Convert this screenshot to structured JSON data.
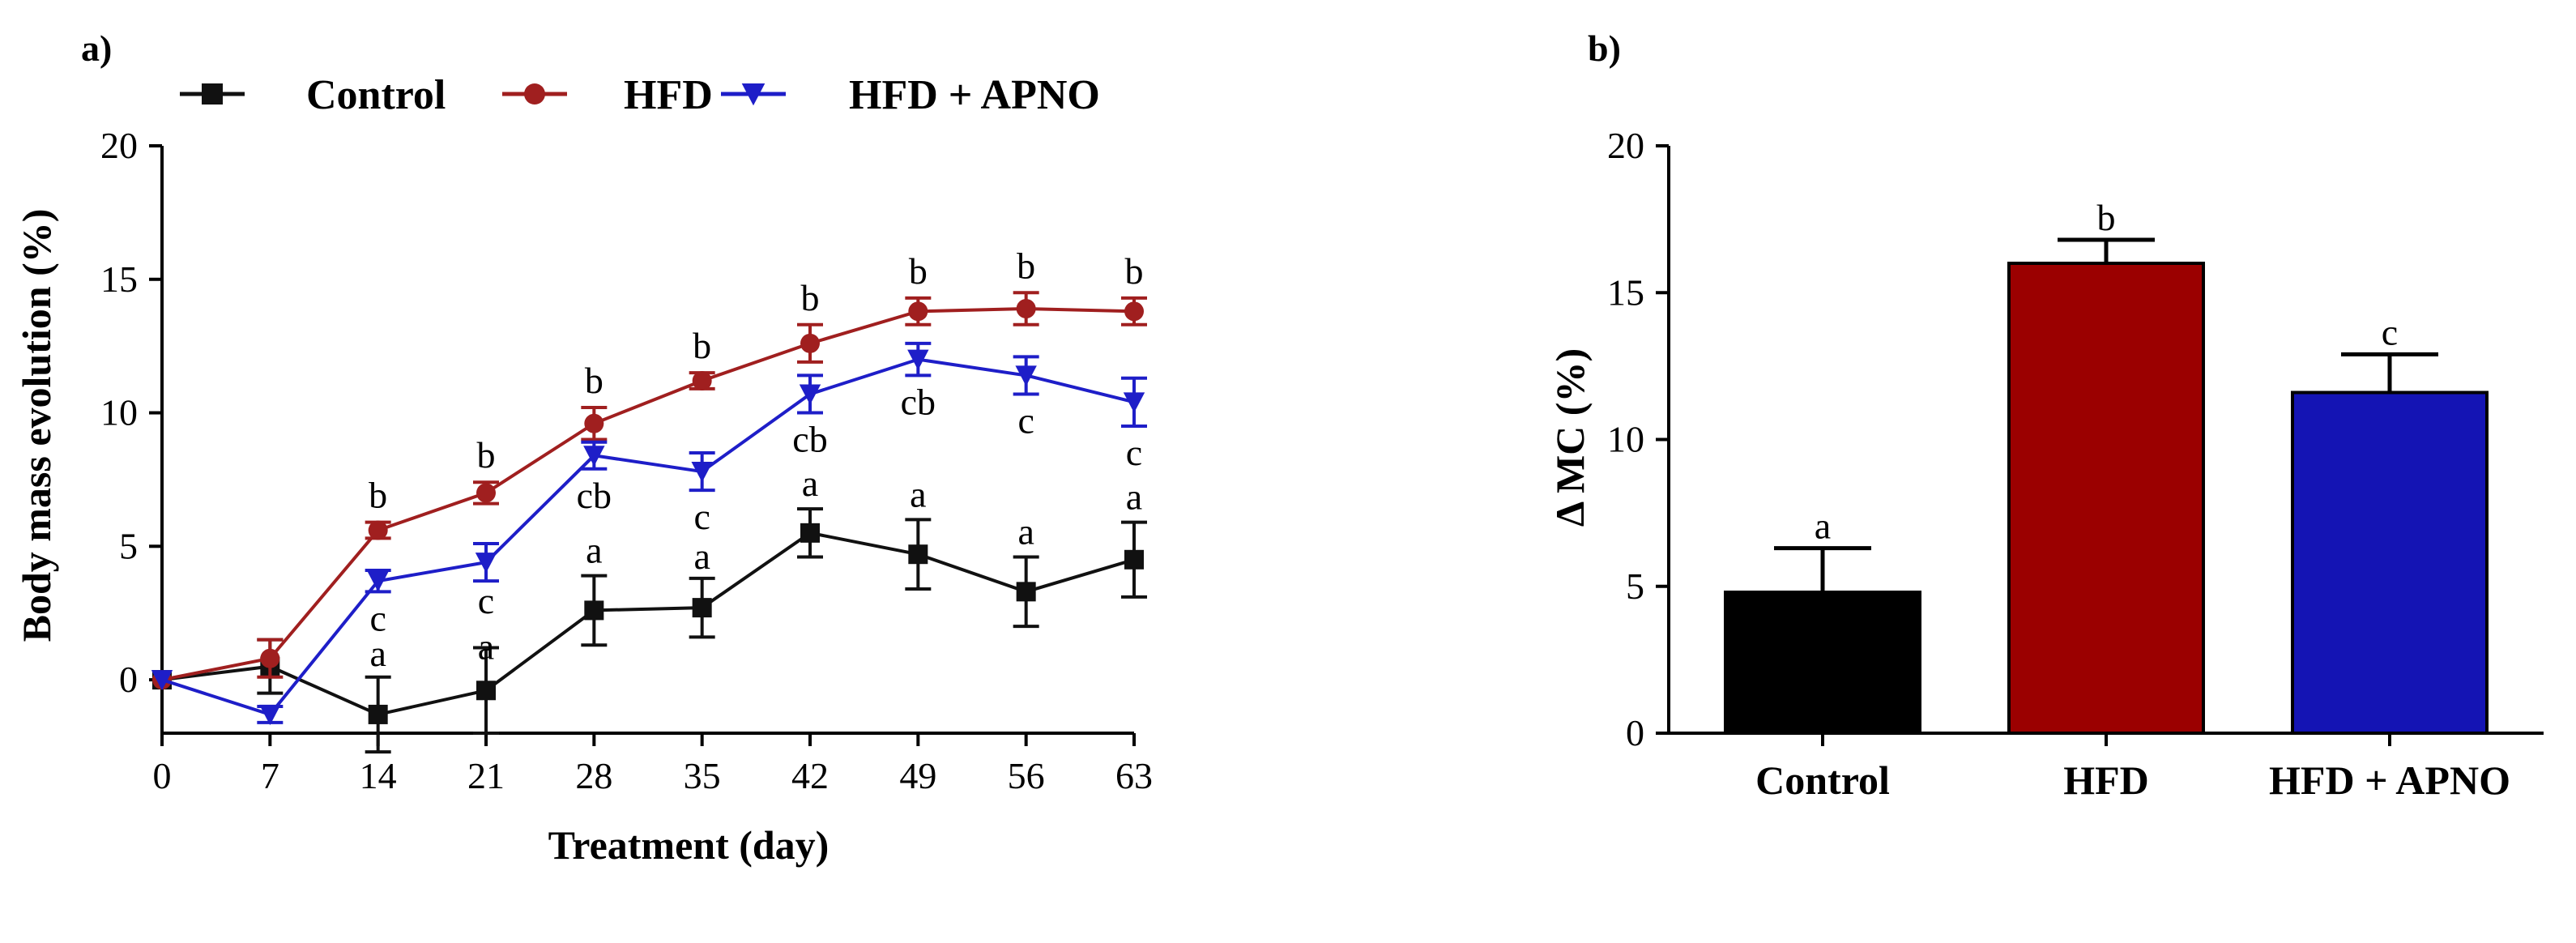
{
  "chart_data": [
    {
      "type": "line",
      "panel_label": "a)",
      "title": "",
      "xlabel": "Treatment (day)",
      "ylabel": "Body mass evolution (%)",
      "x": [
        0,
        7,
        14,
        21,
        28,
        35,
        42,
        49,
        56,
        63
      ],
      "x_tick_labels": [
        "0",
        "7",
        "14",
        "21",
        "28",
        "35",
        "42",
        "49",
        "56",
        "63"
      ],
      "xlim": [
        0,
        63
      ],
      "ylim": [
        -2,
        20
      ],
      "y_ticks": [
        0,
        5,
        10,
        15,
        20
      ],
      "y_tick_labels": [
        "0",
        "5",
        "10",
        "15",
        "20"
      ],
      "legend_position": "top",
      "series": [
        {
          "name": "Control",
          "color": "#111111",
          "marker": "square",
          "values": [
            0,
            0.5,
            -1.3,
            -0.4,
            2.6,
            2.7,
            5.5,
            4.7,
            3.3,
            4.5
          ],
          "errors": [
            0,
            1.0,
            1.4,
            1.6,
            1.3,
            1.1,
            0.9,
            1.3,
            1.3,
            1.4
          ],
          "sig_letters": [
            "",
            "",
            "a",
            "a",
            "a",
            "a",
            "a",
            "a",
            "a",
            "a"
          ]
        },
        {
          "name": "HFD",
          "color": "#a01f1f",
          "marker": "circle",
          "values": [
            0,
            0.8,
            5.6,
            7.0,
            9.6,
            11.2,
            12.6,
            13.8,
            13.9,
            13.8
          ],
          "errors": [
            0,
            0.7,
            0.3,
            0.4,
            0.6,
            0.3,
            0.7,
            0.5,
            0.6,
            0.5
          ],
          "sig_letters": [
            "",
            "",
            "b",
            "b",
            "b",
            "b",
            "b",
            "b",
            "b",
            "b"
          ]
        },
        {
          "name": "HFD + APNO",
          "color": "#1e1ec8",
          "marker": "triangle-down",
          "values": [
            0,
            -1.3,
            3.7,
            4.4,
            8.4,
            7.8,
            10.7,
            12.0,
            11.4,
            10.4
          ],
          "errors": [
            0,
            0.3,
            0.4,
            0.7,
            0.5,
            0.7,
            0.7,
            0.6,
            0.7,
            0.9
          ],
          "sig_letters": [
            "",
            "",
            "c",
            "c",
            "cb",
            "c",
            "cb",
            "cb",
            "c",
            "c"
          ]
        }
      ]
    },
    {
      "type": "bar",
      "panel_label": "b)",
      "title": "",
      "xlabel": "",
      "ylabel": "Δ MC (%)",
      "categories": [
        "Control",
        "HFD",
        "HFD + APNO"
      ],
      "values": [
        4.8,
        16.0,
        11.6
      ],
      "errors": [
        1.5,
        0.8,
        1.3
      ],
      "colors": [
        "#000000",
        "#9b0000",
        "#1414b4"
      ],
      "sig_letters": [
        "a",
        "b",
        "c"
      ],
      "ylim": [
        0,
        20
      ],
      "y_ticks": [
        0,
        5,
        10,
        15,
        20
      ],
      "y_tick_labels": [
        "0",
        "5",
        "10",
        "15",
        "20"
      ]
    }
  ]
}
